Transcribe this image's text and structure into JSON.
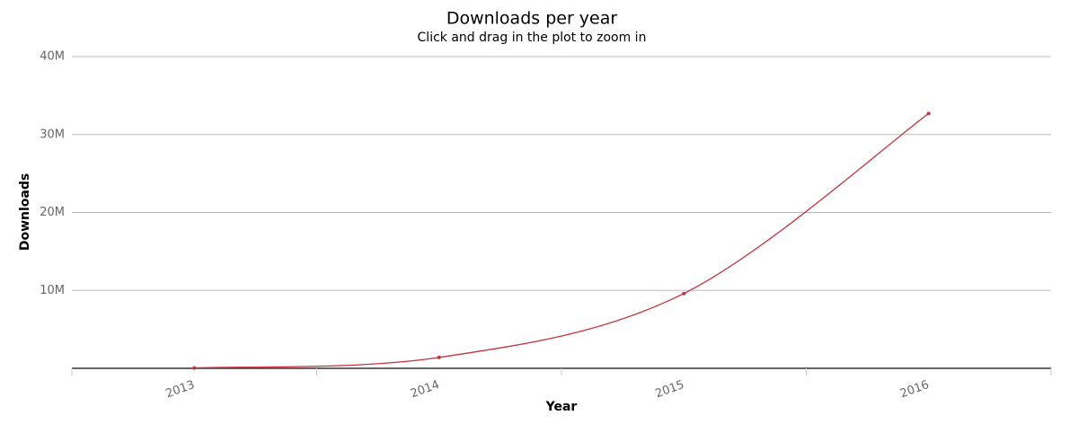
{
  "chart_data": {
    "type": "line",
    "title": "Downloads per year",
    "subtitle": "Click and drag in the plot to zoom in",
    "x_label": "Year",
    "y_label": "Downloads",
    "categories": [
      "2013",
      "2014",
      "2015",
      "2016"
    ],
    "series": [
      {
        "name": "Downloads",
        "color": "#c9313c",
        "values": [
          50000,
          1400000,
          9600000,
          32700000
        ]
      }
    ],
    "ylim": [
      0,
      40000000
    ],
    "yticks": [
      {
        "value": 10000000,
        "label": "10M"
      },
      {
        "value": 20000000,
        "label": "20M"
      },
      {
        "value": 30000000,
        "label": "30M"
      },
      {
        "value": 40000000,
        "label": "40M"
      }
    ],
    "grid": true
  }
}
